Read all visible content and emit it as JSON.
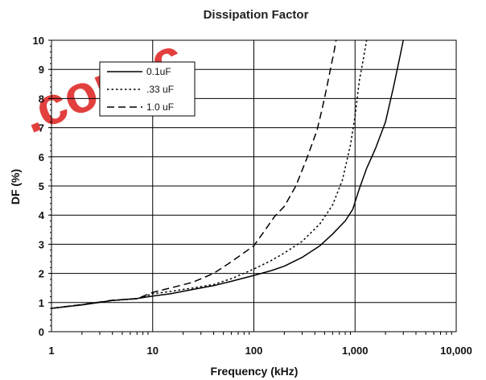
{
  "chart_data": {
    "type": "line",
    "title": "Dissipation Factor",
    "xlabel": "Frequency (kHz)",
    "ylabel": "DF (%)",
    "x_scale": "log",
    "xlim": [
      1,
      10000
    ],
    "ylim": [
      0,
      10
    ],
    "x_ticks": [
      1,
      10,
      100,
      1000,
      10000
    ],
    "x_tick_labels": [
      "1",
      "10",
      "100",
      "1,000",
      "10,000"
    ],
    "y_ticks": [
      0,
      1,
      2,
      3,
      4,
      5,
      6,
      7,
      8,
      9,
      10
    ],
    "y_tick_labels": [
      "0",
      "1",
      "2",
      "3",
      "4",
      "5",
      "6",
      "7",
      "8",
      "9",
      "10"
    ],
    "grid": true,
    "legend_position": "top-left",
    "series": [
      {
        "name": "0.1uF",
        "style": "solid",
        "points": [
          [
            1,
            0.8
          ],
          [
            2,
            0.92
          ],
          [
            4,
            1.07
          ],
          [
            7,
            1.14
          ],
          [
            10,
            1.22
          ],
          [
            15,
            1.3
          ],
          [
            25,
            1.45
          ],
          [
            40,
            1.58
          ],
          [
            60,
            1.73
          ],
          [
            100,
            1.93
          ],
          [
            150,
            2.1
          ],
          [
            200,
            2.25
          ],
          [
            300,
            2.55
          ],
          [
            450,
            2.95
          ],
          [
            600,
            3.35
          ],
          [
            800,
            3.8
          ],
          [
            950,
            4.2
          ],
          [
            1100,
            4.9
          ],
          [
            1300,
            5.6
          ],
          [
            1600,
            6.3
          ],
          [
            2000,
            7.2
          ],
          [
            2400,
            8.4
          ],
          [
            2800,
            9.5
          ],
          [
            3000,
            10
          ]
        ]
      },
      {
        "name": ".33 uF",
        "style": "dotted",
        "points": [
          [
            1,
            0.8
          ],
          [
            2,
            0.93
          ],
          [
            4,
            1.07
          ],
          [
            7,
            1.13
          ],
          [
            10,
            1.3
          ],
          [
            15,
            1.38
          ],
          [
            25,
            1.5
          ],
          [
            40,
            1.62
          ],
          [
            60,
            1.82
          ],
          [
            100,
            2.15
          ],
          [
            150,
            2.45
          ],
          [
            200,
            2.7
          ],
          [
            300,
            3.1
          ],
          [
            450,
            3.7
          ],
          [
            600,
            4.35
          ],
          [
            750,
            5.2
          ],
          [
            900,
            6.4
          ],
          [
            1000,
            7.4
          ],
          [
            1100,
            8.6
          ],
          [
            1200,
            9.3
          ],
          [
            1300,
            10
          ]
        ]
      },
      {
        "name": "1.0 uF",
        "style": "dashed",
        "points": [
          [
            1,
            0.8
          ],
          [
            2,
            0.93
          ],
          [
            4,
            1.08
          ],
          [
            7,
            1.13
          ],
          [
            10,
            1.35
          ],
          [
            15,
            1.5
          ],
          [
            25,
            1.7
          ],
          [
            40,
            2.0
          ],
          [
            60,
            2.4
          ],
          [
            100,
            2.95
          ],
          [
            130,
            3.5
          ],
          [
            160,
            3.95
          ],
          [
            200,
            4.3
          ],
          [
            260,
            5.0
          ],
          [
            330,
            5.9
          ],
          [
            420,
            6.9
          ],
          [
            470,
            7.6
          ],
          [
            520,
            8.3
          ],
          [
            570,
            9.0
          ],
          [
            620,
            9.6
          ],
          [
            650,
            10
          ]
        ]
      }
    ]
  },
  "watermark": {
    "text": ".com.c",
    "color": "#e0302e"
  }
}
